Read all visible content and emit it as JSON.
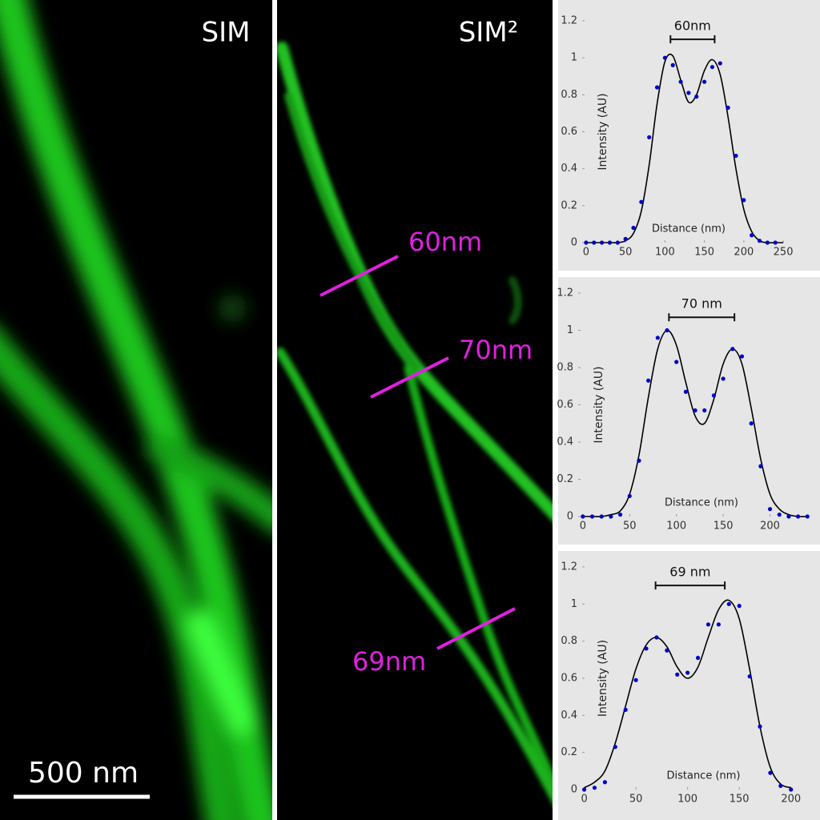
{
  "images": [
    {
      "title": "SIM",
      "scale_bar": "500 nm"
    },
    {
      "title": "SIM²",
      "annotations": [
        "60nm",
        "70nm",
        "69nm"
      ]
    }
  ],
  "chart_data": [
    {
      "type": "line",
      "xlabel": "Distance (nm)",
      "ylabel": "Intensity (AU)",
      "xlim": [
        -5,
        255
      ],
      "ylim": [
        0,
        1.2
      ],
      "xticks": [
        0,
        50,
        100,
        150,
        200,
        250
      ],
      "yticks": [
        0,
        0.2,
        0.4,
        0.6,
        0.8,
        1,
        1.2
      ],
      "annotation": {
        "text": "60nm",
        "x": [
          107,
          163
        ],
        "y": 1.1
      },
      "series": [
        {
          "color": "#000000",
          "style": "line",
          "x": [
            0,
            10,
            20,
            30,
            40,
            50,
            60,
            70,
            80,
            90,
            100,
            110,
            120,
            130,
            140,
            150,
            160,
            170,
            180,
            190,
            200,
            210,
            220,
            230,
            240,
            250
          ],
          "values": [
            0,
            0,
            0,
            0,
            0,
            0.01,
            0.05,
            0.17,
            0.42,
            0.75,
            0.98,
            1.01,
            0.88,
            0.76,
            0.8,
            0.93,
            0.99,
            0.91,
            0.68,
            0.4,
            0.18,
            0.06,
            0.01,
            0,
            0,
            0
          ]
        },
        {
          "color": "#0000cc",
          "style": "markers",
          "x": [
            0,
            10,
            20,
            30,
            40,
            50,
            60,
            70,
            80,
            90,
            100,
            110,
            120,
            130,
            140,
            150,
            160,
            170,
            180,
            190,
            200,
            210,
            220,
            230,
            240
          ],
          "values": [
            0,
            0,
            0,
            0,
            0,
            0.02,
            0.08,
            0.22,
            0.57,
            0.84,
            1.0,
            0.96,
            0.87,
            0.81,
            0.79,
            0.87,
            0.95,
            0.97,
            0.73,
            0.47,
            0.23,
            0.04,
            0.01,
            0,
            0
          ]
        }
      ]
    },
    {
      "type": "line",
      "xlabel": "Distance (nm)",
      "ylabel": "Intensity (AU)",
      "xlim": [
        -5,
        250
      ],
      "ylim": [
        0,
        1.2
      ],
      "xticks": [
        0,
        50,
        100,
        150,
        200
      ],
      "yticks": [
        0,
        0.2,
        0.4,
        0.6,
        0.8,
        1,
        1.2
      ],
      "annotation": {
        "text": "70 nm",
        "x": [
          92,
          162
        ],
        "y": 1.07
      },
      "series": [
        {
          "color": "#000000",
          "style": "line",
          "x": [
            0,
            10,
            20,
            30,
            40,
            50,
            60,
            70,
            80,
            90,
            100,
            110,
            120,
            130,
            140,
            150,
            160,
            170,
            180,
            190,
            200,
            210,
            220,
            230,
            240
          ],
          "values": [
            0,
            0,
            0,
            0.01,
            0.03,
            0.12,
            0.33,
            0.64,
            0.9,
            1.0,
            0.92,
            0.72,
            0.54,
            0.5,
            0.63,
            0.82,
            0.9,
            0.82,
            0.58,
            0.31,
            0.12,
            0.04,
            0.01,
            0,
            0
          ]
        },
        {
          "color": "#0000cc",
          "style": "markers",
          "x": [
            0,
            10,
            20,
            30,
            40,
            50,
            60,
            70,
            80,
            90,
            100,
            110,
            120,
            130,
            140,
            150,
            160,
            170,
            180,
            190,
            200,
            210,
            220,
            230,
            240
          ],
          "values": [
            0,
            0,
            0,
            0,
            0.01,
            0.11,
            0.3,
            0.73,
            0.96,
            1.0,
            0.83,
            0.67,
            0.57,
            0.57,
            0.65,
            0.74,
            0.9,
            0.86,
            0.5,
            0.27,
            0.04,
            0.01,
            0,
            0,
            0
          ]
        }
      ]
    },
    {
      "type": "line",
      "xlabel": "Distance (nm)",
      "ylabel": "Intensity (AU)",
      "xlim": [
        -2,
        225
      ],
      "ylim": [
        0,
        1.2
      ],
      "xticks": [
        0,
        50,
        100,
        150,
        200
      ],
      "yticks": [
        0,
        0.2,
        0.4,
        0.6,
        0.8,
        1,
        1.2
      ],
      "annotation": {
        "text": "69 nm",
        "x": [
          69,
          136
        ],
        "y": 1.1
      },
      "series": [
        {
          "color": "#000000",
          "style": "line",
          "x": [
            0,
            10,
            20,
            30,
            40,
            50,
            60,
            70,
            80,
            90,
            100,
            110,
            120,
            130,
            140,
            150,
            160,
            170,
            180,
            190,
            200
          ],
          "values": [
            0.01,
            0.04,
            0.1,
            0.25,
            0.45,
            0.65,
            0.78,
            0.82,
            0.77,
            0.66,
            0.6,
            0.66,
            0.82,
            0.97,
            1.02,
            0.92,
            0.65,
            0.34,
            0.12,
            0.03,
            0.01
          ]
        },
        {
          "color": "#0000cc",
          "style": "markers",
          "x": [
            0,
            10,
            20,
            30,
            40,
            50,
            60,
            70,
            80,
            90,
            100,
            110,
            120,
            130,
            140,
            150,
            160,
            170,
            180,
            190,
            200
          ],
          "values": [
            0,
            0.01,
            0.04,
            0.23,
            0.43,
            0.59,
            0.76,
            0.82,
            0.75,
            0.62,
            0.63,
            0.71,
            0.89,
            0.89,
            1.0,
            0.99,
            0.61,
            0.34,
            0.09,
            0.02,
            0
          ]
        }
      ]
    }
  ]
}
